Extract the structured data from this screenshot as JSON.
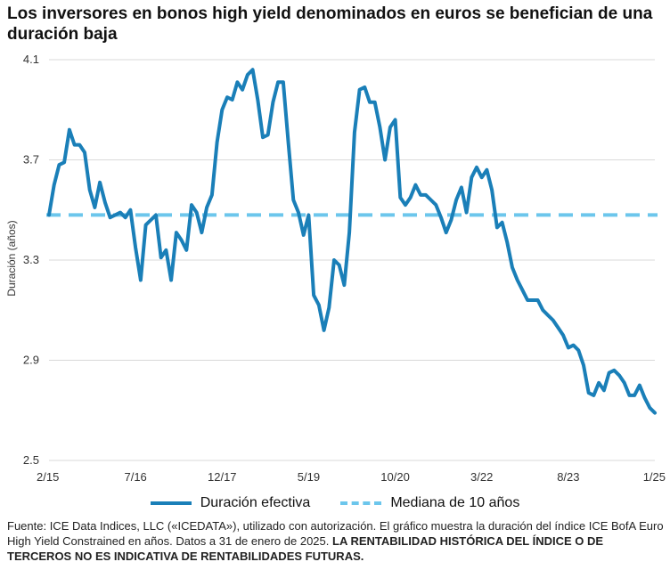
{
  "title": "Los inversores en bonos high yield denominados en euros se benefician de una duración baja",
  "source_text": "Fuente: ICE Data Indices, LLC («ICEDATA»), utilizado con autorización. El gráfico muestra la duración del índice ICE BofA Euro High Yield Constrained en años. Datos a 31 de enero de 2025.",
  "disclaimer": "LA RENTABILIDAD HISTÓRICA DEL ÍNDICE O DE TERCEROS NO ES INDICATIVA DE RENTABILIDADES FUTURAS.",
  "colors": {
    "series": "#1a7fb8",
    "median": "#6cc6ec",
    "grid": "#d9d9d9"
  },
  "chart_data": {
    "type": "line",
    "ylabel": "Duración (años)",
    "ylim": [
      2.5,
      4.1
    ],
    "yticks": [
      "4.1",
      "3.7",
      "3.3",
      "2.9",
      "2.5"
    ],
    "xticks": [
      "2/15",
      "7/16",
      "12/17",
      "5/19",
      "10/20",
      "3/22",
      "8/23",
      "1/25"
    ],
    "xlim": [
      0,
      119
    ],
    "grid": true,
    "legend_position": "bottom",
    "series": [
      {
        "name": "Duración efectiva",
        "style": "solid",
        "values": [
          3.48,
          3.6,
          3.68,
          3.69,
          3.82,
          3.76,
          3.76,
          3.73,
          3.58,
          3.51,
          3.61,
          3.53,
          3.47,
          3.48,
          3.49,
          3.47,
          3.5,
          3.35,
          3.22,
          3.44,
          3.46,
          3.48,
          3.31,
          3.34,
          3.22,
          3.41,
          3.38,
          3.34,
          3.52,
          3.49,
          3.41,
          3.51,
          3.56,
          3.77,
          3.9,
          3.95,
          3.94,
          4.01,
          3.98,
          4.04,
          4.06,
          3.94,
          3.79,
          3.8,
          3.93,
          4.01,
          4.01,
          3.77,
          3.54,
          3.49,
          3.4,
          3.48,
          3.16,
          3.12,
          3.02,
          3.11,
          3.3,
          3.28,
          3.2,
          3.41,
          3.81,
          3.98,
          3.99,
          3.93,
          3.93,
          3.83,
          3.7,
          3.83,
          3.86,
          3.55,
          3.52,
          3.55,
          3.6,
          3.56,
          3.56,
          3.54,
          3.52,
          3.47,
          3.41,
          3.46,
          3.54,
          3.59,
          3.49,
          3.63,
          3.67,
          3.63,
          3.66,
          3.58,
          3.43,
          3.45,
          3.37,
          3.27,
          3.22,
          3.18,
          3.14,
          3.14,
          3.14,
          3.1,
          3.08,
          3.06,
          3.03,
          3.0,
          2.95,
          2.96,
          2.94,
          2.88,
          2.77,
          2.76,
          2.81,
          2.78,
          2.85,
          2.86,
          2.84,
          2.81,
          2.76,
          2.76,
          2.8,
          2.75,
          2.71,
          2.69
        ]
      },
      {
        "name": "Mediana de 10 años",
        "style": "dashed",
        "values": [
          3.48
        ]
      }
    ]
  }
}
